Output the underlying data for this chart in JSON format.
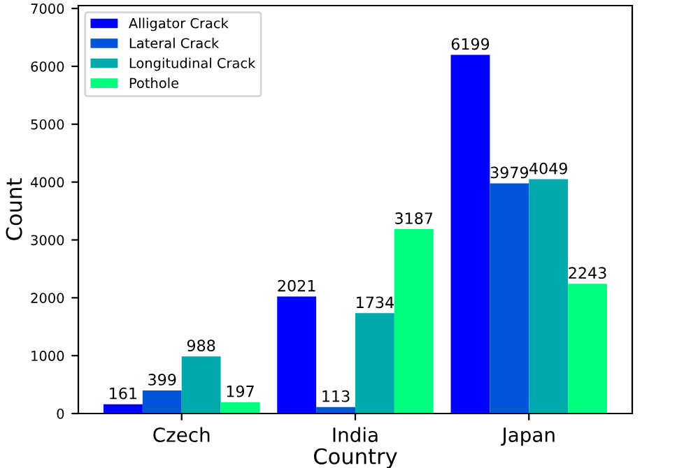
{
  "chart_data": {
    "type": "bar",
    "xlabel": "Country",
    "ylabel": "Count",
    "categories": [
      "Czech",
      "India",
      "Japan"
    ],
    "series": [
      {
        "name": "Alligator Crack",
        "color": "#0000ff",
        "values": [
          161,
          2021,
          6199
        ]
      },
      {
        "name": "Lateral Crack",
        "color": "#0055d8",
        "values": [
          399,
          113,
          3979
        ]
      },
      {
        "name": "Longitudinal Crack",
        "color": "#00aaaa",
        "values": [
          988,
          1734,
          4049
        ]
      },
      {
        "name": "Pothole",
        "color": "#00ff7f",
        "values": [
          197,
          3187,
          2243
        ]
      }
    ],
    "ylim": [
      0,
      7050
    ],
    "yticks": [
      0,
      1000,
      2000,
      3000,
      4000,
      5000,
      6000,
      7000
    ],
    "data_labels": true,
    "legend": "top left",
    "grid": false
  }
}
